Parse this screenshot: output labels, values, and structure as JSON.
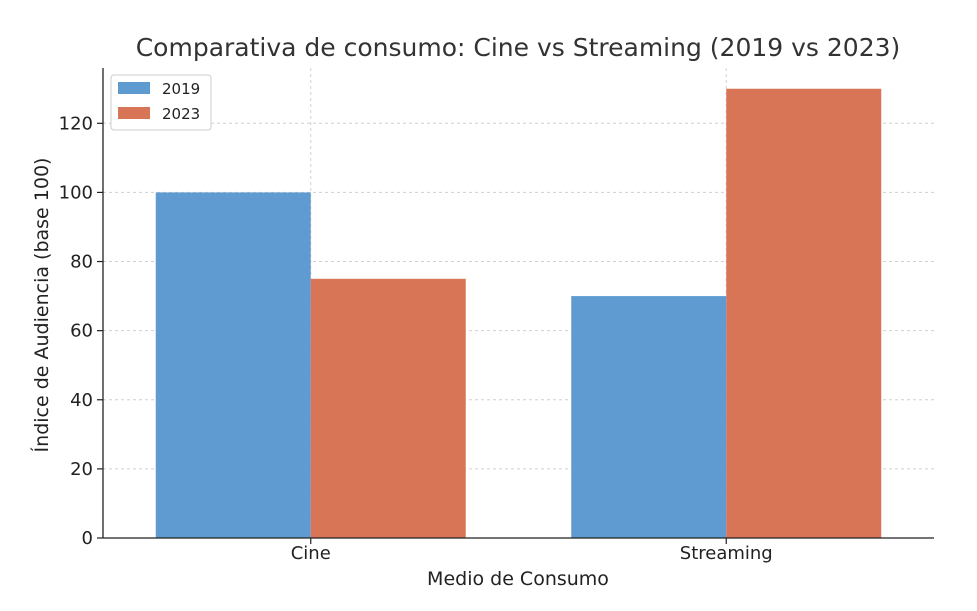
{
  "chart_data": {
    "type": "bar",
    "title": "Comparativa de consumo: Cine vs Streaming (2019 vs 2023)",
    "xlabel": "Medio de Consumo",
    "ylabel": "Índice de Audiencia (base 100)",
    "categories": [
      "Cine",
      "Streaming"
    ],
    "series": [
      {
        "name": "2019",
        "values": [
          100,
          70
        ],
        "color": "#5f9bd1"
      },
      {
        "name": "2023",
        "values": [
          75,
          130
        ],
        "color": "#d97557"
      }
    ],
    "ylim": [
      0,
      136
    ],
    "yticks": [
      0,
      20,
      40,
      60,
      80,
      100,
      120
    ],
    "grid": true,
    "legend_position": "top-left"
  }
}
